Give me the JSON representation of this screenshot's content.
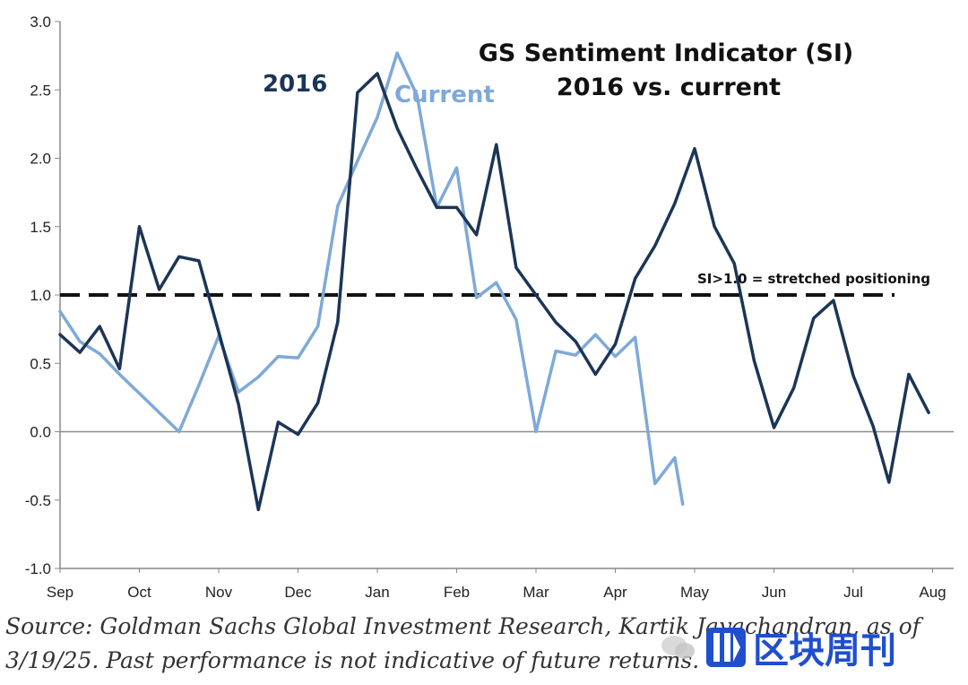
{
  "chart_data": {
    "type": "line",
    "title_line1": "GS Sentiment Indicator (SI)",
    "title_line2": "2016 vs. current",
    "xlabel": "",
    "ylabel": "",
    "x_range": [
      0,
      11.4
    ],
    "ylim": [
      -1.0,
      3.0
    ],
    "y_ticks": [
      3.0,
      2.5,
      2.0,
      1.5,
      1.0,
      0.5,
      0.0,
      -0.5,
      -1.0
    ],
    "y_tick_labels": [
      "3.0",
      "2.5",
      "2.0",
      "1.5",
      "1.0",
      "0.5",
      "0.0",
      "-0.5",
      "-1.0"
    ],
    "x_tick_labels": [
      "Sep",
      "Oct",
      "Nov",
      "Dec",
      "Jan",
      "Feb",
      "Mar",
      "Apr",
      "May",
      "Jun",
      "Jul",
      "Aug"
    ],
    "threshold": {
      "value": 1.0,
      "label": "SI>1.0 = stretched positioning",
      "style": "dashed"
    },
    "zero_line": true,
    "series": [
      {
        "name": "2016",
        "color": "#1c3557",
        "x": [
          0,
          0.25,
          0.5,
          0.75,
          1.0,
          1.25,
          1.5,
          1.75,
          2.0,
          2.25,
          2.5,
          2.75,
          3.0,
          3.25,
          3.5,
          3.75,
          4.0,
          4.25,
          4.5,
          4.75,
          5.0,
          5.25,
          5.5,
          5.75,
          6.0,
          6.25,
          6.5,
          6.75,
          7.0,
          7.25,
          7.5,
          7.75,
          8.0,
          8.25,
          8.5,
          8.75,
          9.0,
          9.25,
          9.5,
          9.75,
          10.0,
          10.25
        ],
        "values": [
          0.71,
          0.58,
          0.77,
          0.46,
          1.5,
          1.04,
          1.28,
          1.25,
          0.73,
          0.2,
          -0.57,
          0.07,
          -0.02,
          0.21,
          0.8,
          2.48,
          2.62,
          2.22,
          1.92,
          1.64,
          1.64,
          1.44,
          2.1,
          1.2,
          1.0,
          0.8,
          0.66,
          0.42,
          0.64,
          1.12,
          1.36,
          1.67,
          2.07,
          1.5,
          1.23,
          0.52,
          0.03,
          0.32,
          0.83,
          0.96,
          0.41,
          0.14
        ]
      },
      {
        "name": "Current",
        "color": "#7ea9d8",
        "x": [
          0,
          0.25,
          0.5,
          0.75,
          1.0,
          1.25,
          1.5,
          1.75,
          2.0,
          2.25,
          2.5,
          2.75,
          3.0,
          3.25,
          3.5,
          3.75,
          4.0,
          4.25,
          4.5,
          4.75,
          5.0,
          5.25,
          5.5,
          5.75,
          6.0,
          6.25,
          6.5,
          6.75,
          7.0,
          7.25,
          7.5,
          7.75
        ],
        "values": [
          0.88,
          0.66,
          0.57,
          0.42,
          0.28,
          0.14,
          0.0,
          0.34,
          0.7,
          0.29,
          0.4,
          0.55,
          0.54,
          0.77,
          1.65,
          1.98,
          2.3,
          2.77,
          2.46,
          1.64,
          1.93,
          0.98,
          1.09,
          0.82,
          0.0,
          0.59,
          0.56,
          0.71,
          0.55,
          0.69,
          -0.38,
          -0.19
        ]
      }
    ],
    "series_2016_extra": {
      "x": [
        9.5,
        9.75,
        10.0,
        10.25
      ],
      "values": [
        -0.37,
        0.42,
        0.14,
        0.14
      ]
    }
  },
  "source": {
    "line1": "Source: Goldman Sachs Global Investment Research, Kartik Jayachandran, as of",
    "line2": "3/19/25. Past performance is not indicative of future returns."
  },
  "watermark": {
    "text": "区块周刊",
    "icon": "wechat-icon"
  }
}
